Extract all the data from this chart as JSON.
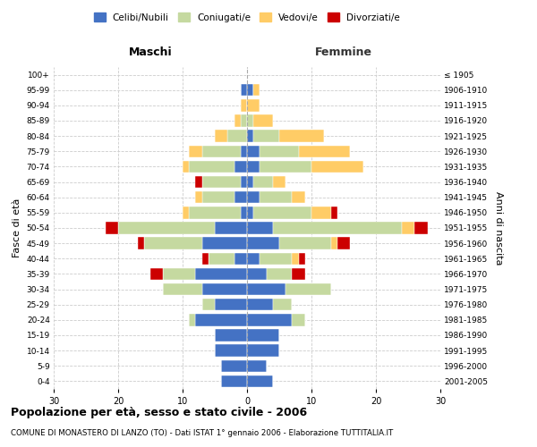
{
  "age_groups": [
    "0-4",
    "5-9",
    "10-14",
    "15-19",
    "20-24",
    "25-29",
    "30-34",
    "35-39",
    "40-44",
    "45-49",
    "50-54",
    "55-59",
    "60-64",
    "65-69",
    "70-74",
    "75-79",
    "80-84",
    "85-89",
    "90-94",
    "95-99",
    "100+"
  ],
  "birth_years": [
    "2001-2005",
    "1996-2000",
    "1991-1995",
    "1986-1990",
    "1981-1985",
    "1976-1980",
    "1971-1975",
    "1966-1970",
    "1961-1965",
    "1956-1960",
    "1951-1955",
    "1946-1950",
    "1941-1945",
    "1936-1940",
    "1931-1935",
    "1926-1930",
    "1921-1925",
    "1916-1920",
    "1911-1915",
    "1906-1910",
    "≤ 1905"
  ],
  "male_celibi": [
    4,
    4,
    5,
    5,
    8,
    5,
    7,
    8,
    2,
    7,
    5,
    1,
    2,
    1,
    2,
    1,
    0,
    0,
    0,
    1,
    0
  ],
  "male_coniugati": [
    0,
    0,
    0,
    0,
    1,
    2,
    6,
    5,
    4,
    9,
    15,
    8,
    5,
    6,
    7,
    6,
    3,
    1,
    0,
    0,
    0
  ],
  "male_vedovi": [
    0,
    0,
    0,
    0,
    0,
    0,
    0,
    0,
    0,
    0,
    0,
    1,
    1,
    0,
    1,
    2,
    2,
    1,
    1,
    0,
    0
  ],
  "male_divorziati": [
    0,
    0,
    0,
    0,
    0,
    0,
    0,
    2,
    1,
    1,
    2,
    0,
    0,
    1,
    0,
    0,
    0,
    0,
    0,
    0,
    0
  ],
  "female_celibi": [
    4,
    3,
    5,
    5,
    7,
    4,
    6,
    3,
    2,
    5,
    4,
    1,
    2,
    1,
    2,
    2,
    1,
    0,
    0,
    1,
    0
  ],
  "female_coniugati": [
    0,
    0,
    0,
    0,
    2,
    3,
    7,
    4,
    5,
    8,
    20,
    9,
    5,
    3,
    8,
    6,
    4,
    1,
    0,
    0,
    0
  ],
  "female_vedovi": [
    0,
    0,
    0,
    0,
    0,
    0,
    0,
    0,
    1,
    1,
    2,
    3,
    2,
    2,
    8,
    8,
    7,
    3,
    2,
    1,
    0
  ],
  "female_divorziati": [
    0,
    0,
    0,
    0,
    0,
    0,
    0,
    2,
    1,
    2,
    2,
    1,
    0,
    0,
    0,
    0,
    0,
    0,
    0,
    0,
    0
  ],
  "color_celibi": "#4472C4",
  "color_coniugati": "#C5D9A0",
  "color_vedovi": "#FFCC66",
  "color_divorziati": "#CC0000",
  "title_main": "Popolazione per età, sesso e stato civile - 2006",
  "title_sub": "COMUNE DI MONASTERO DI LANZO (TO) - Dati ISTAT 1° gennaio 2006 - Elaborazione TUTTITALIA.IT",
  "xlabel_left": "Maschi",
  "xlabel_right": "Femmine",
  "ylabel_left": "Fasce di età",
  "ylabel_right": "Anni di nascita",
  "xlim": 30,
  "bg_color": "#FFFFFF",
  "grid_color": "#CCCCCC"
}
